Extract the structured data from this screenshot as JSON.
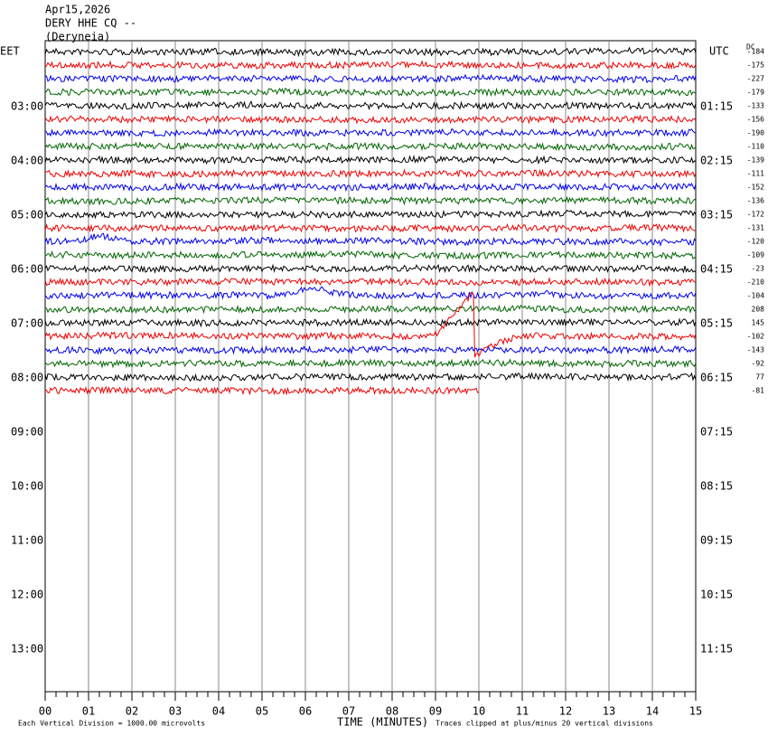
{
  "header": {
    "date": "Apr15,2026",
    "station": "DERY HHE CQ --",
    "location": "(Deryneia)"
  },
  "left_zone": "EET",
  "right_zone": "UTC",
  "dc_header": "DC",
  "left_times": [
    "03:00",
    "04:00",
    "05:00",
    "06:00",
    "07:00",
    "08:00",
    "09:00",
    "10:00",
    "11:00",
    "12:00",
    "13:00"
  ],
  "right_times": [
    "01:15",
    "02:15",
    "03:15",
    "04:15",
    "05:15",
    "06:15",
    "07:15",
    "08:15",
    "09:15",
    "10:15",
    "11:15"
  ],
  "dc_offsets": [
    "-184",
    "-175",
    "-227",
    "-179",
    "-133",
    "-156",
    "-190",
    "-110",
    "-139",
    "-111",
    "-152",
    "-136",
    "-172",
    "-131",
    "-120",
    "-109",
    "-23",
    "-210",
    "-104",
    "208",
    "145",
    "-102",
    "-143",
    "-92",
    "77",
    "-81"
  ],
  "x_ticks": [
    "00",
    "01",
    "02",
    "03",
    "04",
    "05",
    "06",
    "07",
    "08",
    "09",
    "10",
    "11",
    "12",
    "13",
    "14",
    "15"
  ],
  "footer": {
    "scale": "Each Vertical Division = 1000.00 microvolts",
    "x_label": "TIME (MINUTES)",
    "clip_note": "Traces clipped at plus/minus 20 vertical divisions"
  }
}
